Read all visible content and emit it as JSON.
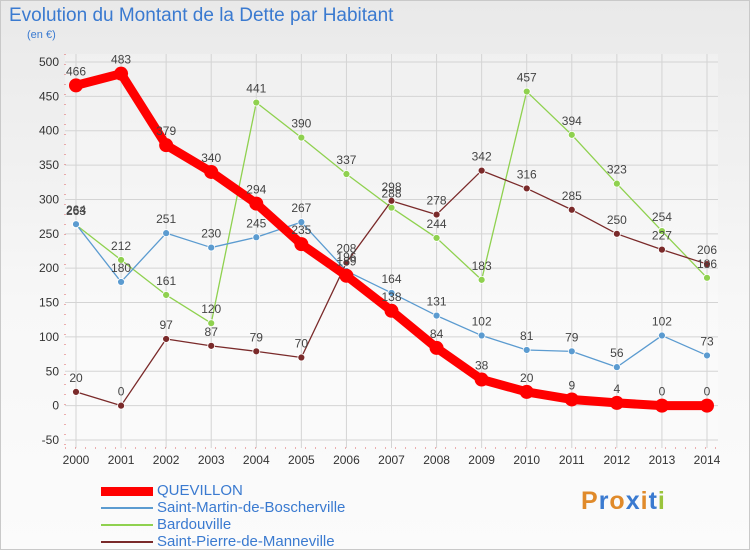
{
  "title": "Evolution du Montant de la Dette par Habitant",
  "subtitle": "(en €)",
  "logo": {
    "text": "Proxiti",
    "letter_colors": [
      "#e08a2a",
      "#3a7ad0",
      "#e08a2a",
      "#3a7ad0",
      "#e08a2a",
      "#3a7ad0",
      "#9ac43c"
    ]
  },
  "chart_data": {
    "type": "line",
    "x": [
      2000,
      2001,
      2002,
      2003,
      2004,
      2005,
      2006,
      2007,
      2008,
      2009,
      2010,
      2011,
      2012,
      2013,
      2014
    ],
    "ylim": [
      -50,
      500
    ],
    "yticks": [
      -50,
      0,
      50,
      100,
      150,
      200,
      250,
      300,
      350,
      400,
      450,
      500
    ],
    "grid": true,
    "legend_position": "bottom-left",
    "series": [
      {
        "name": "QUEVILLON",
        "color": "#ff0000",
        "values": [
          466,
          483,
          379,
          340,
          294,
          235,
          189,
          138,
          84,
          38,
          20,
          9,
          4,
          0,
          0
        ]
      },
      {
        "name": "Saint-Martin-de-Boscherville",
        "color": "#5b9bd0",
        "values": [
          264,
          180,
          251,
          230,
          245,
          267,
          196,
          164,
          131,
          102,
          81,
          79,
          56,
          102,
          73
        ]
      },
      {
        "name": "Bardouville",
        "color": "#8fd14f",
        "values": [
          263,
          212,
          161,
          120,
          441,
          390,
          337,
          288,
          244,
          183,
          457,
          394,
          323,
          254,
          186
        ]
      },
      {
        "name": "Saint-Pierre-de-Manneville",
        "color": "#7a2a2a",
        "values": [
          20,
          0,
          97,
          87,
          79,
          70,
          208,
          298,
          278,
          342,
          316,
          285,
          250,
          227,
          206
        ]
      }
    ]
  }
}
